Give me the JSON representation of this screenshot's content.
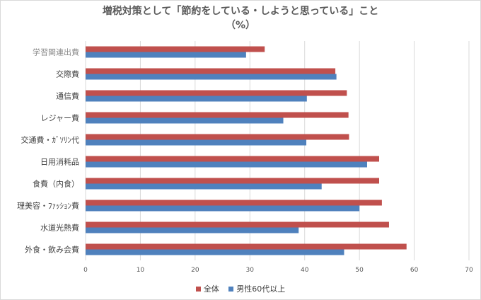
{
  "chart_data": {
    "type": "bar",
    "orientation": "horizontal",
    "title": "増税対策として「節約をしている・しようと思っている」こと",
    "subtitle": "（%）",
    "categories": [
      "学習関連出費",
      "交際費",
      "通信費",
      "レジャー費",
      "交通費・ｶﾞｿﾘﾝ代",
      "日用消耗品",
      "食費（内食）",
      "理美容・ﾌｧｯｼｮﾝ費",
      "水道光熱費",
      "外食・飲み会費"
    ],
    "series": [
      {
        "name": "全体",
        "color": "#c0504d",
        "values": [
          32.7,
          45.6,
          47.7,
          48.0,
          48.1,
          53.6,
          53.6,
          54.1,
          55.4,
          58.6
        ]
      },
      {
        "name": "男性60代以上",
        "color": "#4f81bd",
        "values": [
          29.3,
          45.8,
          40.4,
          36.1,
          40.3,
          51.4,
          43.1,
          50.0,
          38.9,
          47.2
        ]
      }
    ],
    "xlim": [
      0,
      70
    ],
    "xticks": [
      "0",
      "10",
      "20",
      "30",
      "40",
      "50",
      "60",
      "70"
    ],
    "xgrid": true,
    "legend_position": "bottom"
  }
}
